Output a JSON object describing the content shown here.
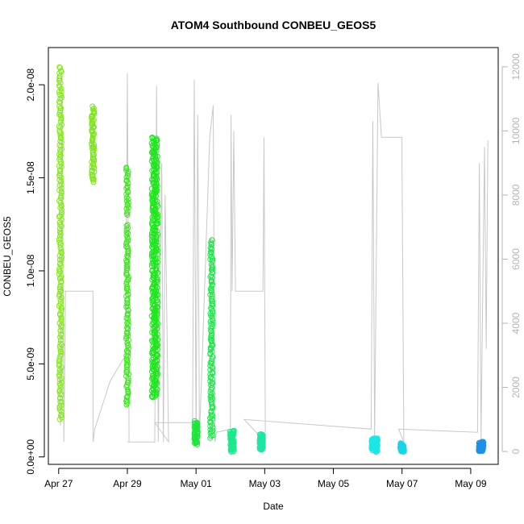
{
  "chart_data": {
    "type": "scatter",
    "title": "ATOM4 Southbound CONBEU_GEOS5",
    "xlabel": "Date",
    "ylabel": "CONBEU_GEOS5",
    "x_ticks": [
      "Apr 27",
      "Apr 29",
      "May 01",
      "May 03",
      "May 05",
      "May 07",
      "May 09"
    ],
    "y_ticks": [
      "0.0e+00",
      "5.0e-09",
      "1.0e-08",
      "1.5e-08",
      "2.0e-08"
    ],
    "y2_ticks": [
      "0",
      "2000",
      "4000",
      "6000",
      "8000",
      "10000",
      "12000"
    ],
    "xlim_days": [
      -0.3,
      12.8
    ],
    "ylim": [
      -4e-10,
      2.2e-08
    ],
    "y2lim": [
      -400,
      12600
    ],
    "grid": false,
    "colors": {
      "altitude": "#c8c8c8",
      "axis": "#000000",
      "axis2": "#b4b4b4"
    },
    "clusters": [
      {
        "day": 0.05,
        "width": 0.08,
        "ranges": [
          [
            2e-09,
            2.1e-08
          ]
        ],
        "color": "#84e81c",
        "n": 190
      },
      {
        "day": 1.0,
        "width": 0.08,
        "ranges": [
          [
            1.48e-08,
            1.88e-08
          ]
        ],
        "color": "#7be61c",
        "n": 70
      },
      {
        "day": 2.0,
        "width": 0.07,
        "ranges": [
          [
            2.8e-09,
            1.25e-08
          ],
          [
            1.3e-08,
            1.56e-08
          ]
        ],
        "color": "#3ce61c",
        "n": 130
      },
      {
        "day": 2.8,
        "width": 0.18,
        "ranges": [
          [
            3.2e-09,
            1.72e-08
          ]
        ],
        "color": "#1ee61c",
        "n": 380
      },
      {
        "day": 4.0,
        "width": 0.1,
        "ranges": [
          [
            7e-10,
            1.9e-09
          ]
        ],
        "color": "#1ce63a",
        "n": 50
      },
      {
        "day": 4.45,
        "width": 0.08,
        "ranges": [
          [
            1e-09,
            6e-09
          ],
          [
            6e-09,
            1.17e-08
          ]
        ],
        "color": "#1ce648",
        "n": 130
      },
      {
        "day": 5.05,
        "width": 0.12,
        "ranges": [
          [
            3e-10,
            1.4e-09
          ]
        ],
        "color": "#1ce88c",
        "n": 80
      },
      {
        "day": 5.9,
        "width": 0.1,
        "ranges": [
          [
            4e-10,
            1.2e-09
          ]
        ],
        "color": "#1ce6a5",
        "n": 70
      },
      {
        "day": 9.2,
        "width": 0.18,
        "ranges": [
          [
            3e-10,
            1e-09
          ]
        ],
        "color": "#1ce6e6",
        "n": 90
      },
      {
        "day": 10.0,
        "width": 0.12,
        "ranges": [
          [
            3e-10,
            7e-10
          ]
        ],
        "color": "#1cd4e6",
        "n": 50
      },
      {
        "day": 12.3,
        "width": 0.15,
        "ranges": [
          [
            3e-10,
            8e-10
          ]
        ],
        "color": "#1c90e6",
        "n": 60
      }
    ],
    "altitude_line": [
      [
        0.05,
        800
      ],
      [
        0.1,
        11400
      ],
      [
        0.15,
        300
      ],
      [
        0.2,
        5000
      ],
      [
        0.5,
        5000
      ],
      [
        1.0,
        5000
      ],
      [
        1.0,
        300
      ],
      [
        1.05,
        700
      ],
      [
        1.5,
        2200
      ],
      [
        1.95,
        3000
      ],
      [
        2.0,
        11800
      ],
      [
        2.05,
        300
      ],
      [
        2.0,
        300
      ],
      [
        2.8,
        300
      ],
      [
        2.85,
        11400
      ],
      [
        2.9,
        300
      ],
      [
        3.0,
        9000
      ],
      [
        3.05,
        300
      ],
      [
        3.1,
        8000
      ],
      [
        3.2,
        300
      ],
      [
        2.8,
        900
      ],
      [
        3.9,
        900
      ],
      [
        3.95,
        11600
      ],
      [
        4.0,
        300
      ],
      [
        4.05,
        10500
      ],
      [
        4.1,
        400
      ],
      [
        4.4,
        9800
      ],
      [
        4.5,
        10800
      ],
      [
        4.55,
        300
      ],
      [
        4.6,
        600
      ],
      [
        5.0,
        700
      ],
      [
        5.02,
        10500
      ],
      [
        5.05,
        5000
      ],
      [
        5.1,
        10000
      ],
      [
        5.15,
        5000
      ],
      [
        5.95,
        5000
      ],
      [
        5.98,
        9800
      ],
      [
        6.02,
        300
      ],
      [
        5.4,
        1000
      ],
      [
        9.1,
        700
      ],
      [
        9.15,
        10300
      ],
      [
        9.2,
        400
      ],
      [
        9.3,
        11500
      ],
      [
        9.4,
        9800
      ],
      [
        10.0,
        9800
      ],
      [
        10.0,
        9000
      ],
      [
        10.05,
        300
      ],
      [
        9.9,
        700
      ],
      [
        12.2,
        600
      ],
      [
        12.25,
        9000
      ],
      [
        12.3,
        400
      ],
      [
        12.4,
        9500
      ],
      [
        12.45,
        3200
      ],
      [
        12.5,
        9700
      ]
    ]
  }
}
